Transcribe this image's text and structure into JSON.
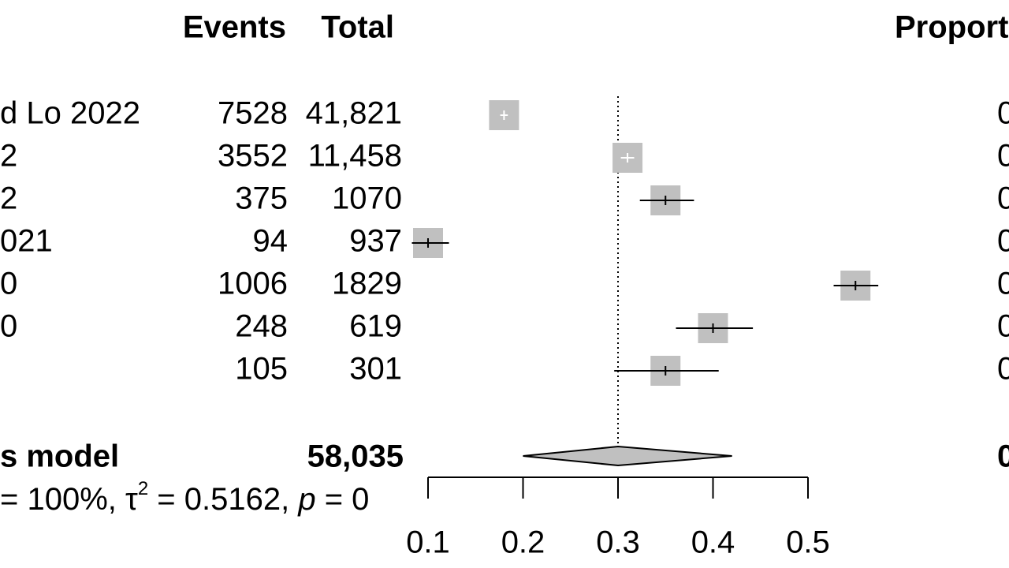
{
  "chart_data": {
    "type": "forest",
    "headers": {
      "events": "Events",
      "total": "Total",
      "proportion": "Proport"
    },
    "studies": [
      "d Lo 2022",
      "2",
      "2",
      "021",
      "0",
      "0",
      null
    ],
    "events": [
      7528,
      3552,
      375,
      94,
      1006,
      248,
      105
    ],
    "totals": [
      "41,821",
      "11,458",
      "1070",
      "937",
      "1829",
      "619",
      "301"
    ],
    "estimate": [
      0.18,
      0.31,
      0.35,
      0.1,
      0.55,
      0.4,
      0.35
    ],
    "lower": [
      0.176,
      0.303,
      0.323,
      0.083,
      0.527,
      0.361,
      0.296
    ],
    "upper": [
      0.184,
      0.317,
      0.38,
      0.122,
      0.574,
      0.442,
      0.406
    ],
    "proportion_labels": [
      "0",
      "0",
      "0",
      "0",
      "0",
      "0",
      "0"
    ],
    "summary": {
      "label": "s model",
      "total": "58,035",
      "estimate": 0.3,
      "lower": 0.2,
      "upper": 0.42,
      "proportion_label": "0"
    },
    "heterogeneity": {
      "prefix": "= 100%, τ",
      "sup": "2",
      "middle": " = 0.5162, ",
      "p": "p",
      "suffix": " = 0"
    },
    "xlim": [
      0.1,
      0.5
    ],
    "xticks": [
      0.1,
      0.2,
      0.3,
      0.4,
      0.5
    ]
  }
}
